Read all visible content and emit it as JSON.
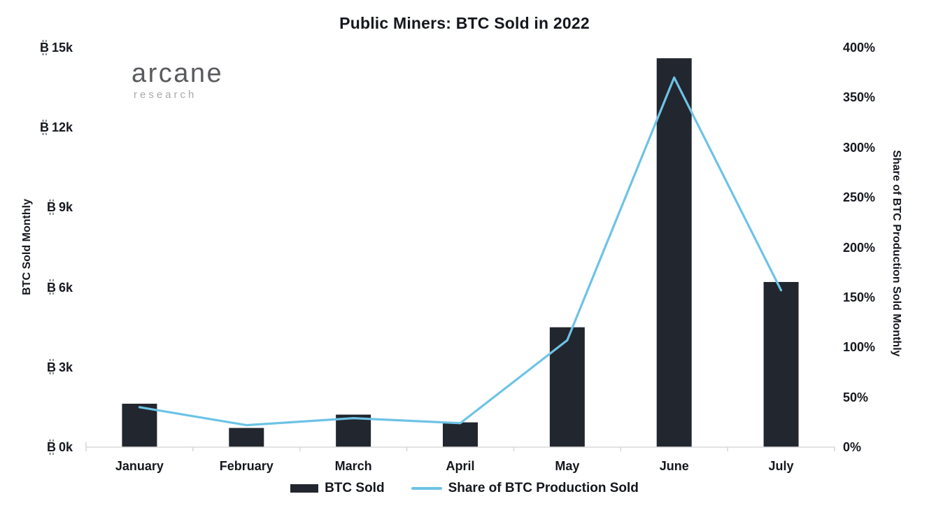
{
  "logo": {
    "name": "arcane",
    "subtitle": "research"
  },
  "colors": {
    "bar": "#22262e",
    "line": "#6dc3e6",
    "axis_line": "#d9d9d9",
    "text": "#14171d",
    "logo_main": "#595a5e",
    "logo_sub": "#a7a8ac",
    "background": "#ffffff"
  },
  "chart_data": {
    "type": "bar+line",
    "title": "Public Miners: BTC Sold in 2022",
    "categories": [
      "January",
      "February",
      "March",
      "April",
      "May",
      "June",
      "July"
    ],
    "series": [
      {
        "name": "BTC Sold",
        "type": "bar",
        "axis": "left",
        "color": "#22262e",
        "values": [
          1630,
          720,
          1220,
          930,
          4500,
          14600,
          6200
        ]
      },
      {
        "name": "Share of BTC Production Sold",
        "type": "line",
        "axis": "right",
        "color": "#6dc3e6",
        "values": [
          40,
          22,
          29,
          24,
          107,
          370,
          157
        ]
      }
    ],
    "left_axis": {
      "title": "BTC Sold Monthly",
      "symbol": "₿",
      "min": 0,
      "max": 15000,
      "tick_step": 3000,
      "tick_values": [
        0,
        3000,
        6000,
        9000,
        12000,
        15000
      ],
      "tick_labels": [
        "0k",
        "3k",
        "6k",
        "9k",
        "12k",
        "15k"
      ]
    },
    "right_axis": {
      "title": "Share of BTC Production Sold Monthly",
      "unit": "%",
      "min": 0,
      "max": 400,
      "tick_step": 50,
      "tick_values": [
        0,
        50,
        100,
        150,
        200,
        250,
        300,
        350,
        400
      ],
      "tick_labels": [
        "0%",
        "50%",
        "100%",
        "150%",
        "200%",
        "250%",
        "300%",
        "350%",
        "400%"
      ]
    },
    "legend": {
      "position": "bottom",
      "items": [
        "BTC Sold",
        "Share of BTC Production Sold"
      ]
    },
    "grid": false
  }
}
